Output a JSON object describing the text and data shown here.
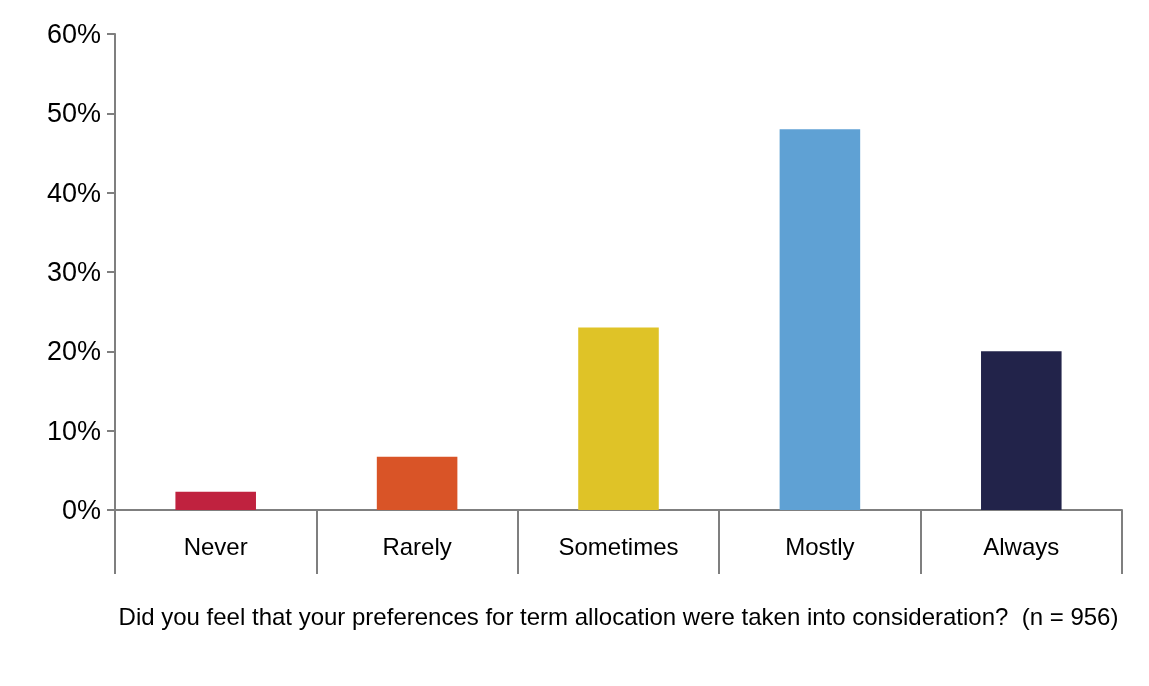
{
  "chart_data": {
    "type": "bar",
    "xlabel": "Did you feel that your preferences for term allocation were taken into consideration?  (n = 956)",
    "categories": [
      "Never",
      "Rarely",
      "Sometimes",
      "Mostly",
      "Always"
    ],
    "values": [
      2.3,
      6.7,
      23,
      48,
      20
    ],
    "colors": [
      "#c0223f",
      "#d95427",
      "#dfc327",
      "#5fa1d4",
      "#22234a"
    ],
    "ylim": [
      0,
      60
    ],
    "yticks": [
      {
        "value": 0,
        "label": "0%"
      },
      {
        "value": 10,
        "label": "10%"
      },
      {
        "value": 20,
        "label": "20%"
      },
      {
        "value": 30,
        "label": "30%"
      },
      {
        "value": 40,
        "label": "40%"
      },
      {
        "value": 50,
        "label": "50%"
      },
      {
        "value": 60,
        "label": "60%"
      }
    ],
    "grid": false
  }
}
